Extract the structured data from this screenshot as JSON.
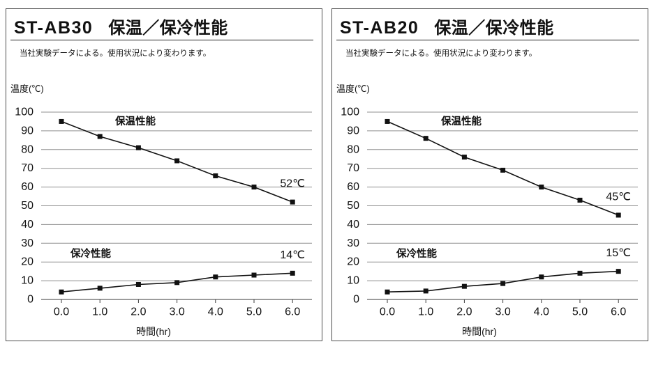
{
  "colors": {
    "series": "#111111",
    "grid": "#8f8f8f",
    "axis": "#3a3a3a"
  },
  "chart_data": [
    {
      "type": "line",
      "title": {
        "model": "ST-AB30",
        "name": "保温／保冷性能"
      },
      "note": "当社実験データによる。使用状況により変わります。",
      "ylabel": "温度(℃)",
      "xlabel": "時間(hr)",
      "x": [
        0,
        1,
        2,
        3,
        4,
        5,
        6
      ],
      "x_labels": [
        "0.0",
        "1.0",
        "2.0",
        "3.0",
        "4.0",
        "5.0",
        "6.0"
      ],
      "xlim": [
        0,
        6
      ],
      "y_ticks": [
        100,
        90,
        80,
        70,
        60,
        50,
        40,
        30,
        20,
        10,
        0
      ],
      "ylim": [
        0,
        100
      ],
      "grid": true,
      "series": [
        {
          "name": "保温性能",
          "values": [
            95,
            87,
            81,
            74,
            66,
            60,
            52
          ],
          "end_label": "52℃"
        },
        {
          "name": "保冷性能",
          "values": [
            4,
            6,
            8,
            9,
            12,
            13,
            14
          ],
          "end_label": "14℃"
        }
      ]
    },
    {
      "type": "line",
      "title": {
        "model": "ST-AB20",
        "name": "保温／保冷性能"
      },
      "note": "当社実験データによる。使用状況により変わります。",
      "ylabel": "温度(℃)",
      "xlabel": "時間(hr)",
      "x": [
        0,
        1,
        2,
        3,
        4,
        5,
        6
      ],
      "x_labels": [
        "0.0",
        "1.0",
        "2.0",
        "3.0",
        "4.0",
        "5.0",
        "6.0"
      ],
      "xlim": [
        0,
        6
      ],
      "y_ticks": [
        100,
        90,
        80,
        70,
        60,
        50,
        40,
        30,
        20,
        10,
        0
      ],
      "ylim": [
        0,
        100
      ],
      "grid": true,
      "series": [
        {
          "name": "保温性能",
          "values": [
            95,
            86,
            76,
            69,
            60,
            53,
            45
          ],
          "end_label": "45℃"
        },
        {
          "name": "保冷性能",
          "values": [
            4,
            4.5,
            7,
            8.5,
            12,
            14,
            15
          ],
          "end_label": "15℃"
        }
      ]
    }
  ]
}
